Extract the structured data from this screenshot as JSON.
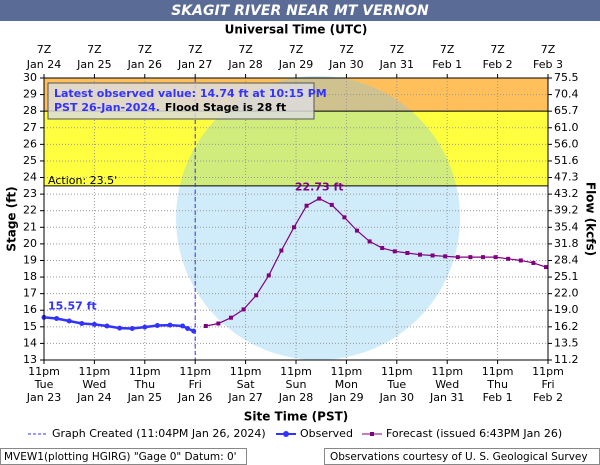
{
  "chart_data": {
    "type": "hydrograph",
    "title": "SKAGIT RIVER NEAR MT VERNON",
    "top_axis_label": "Universal Time (UTC)",
    "top_tick_times": [
      "7Z",
      "7Z",
      "7Z",
      "7Z",
      "7Z",
      "7Z",
      "7Z",
      "7Z",
      "7Z",
      "7Z",
      "7Z"
    ],
    "top_tick_dates": [
      "Jan 24",
      "Jan 25",
      "Jan 26",
      "Jan 27",
      "Jan 28",
      "Jan 29",
      "Jan 30",
      "Jan 31",
      "Feb  1",
      "Feb  2",
      "Feb  3"
    ],
    "xlabel": "Site Time (PST)",
    "x_tick_times": [
      "11pm",
      "11pm",
      "11pm",
      "11pm",
      "11pm",
      "11pm",
      "11pm",
      "11pm",
      "11pm",
      "11pm",
      "11pm"
    ],
    "x_tick_weekdays": [
      "Tue",
      "Wed",
      "Thu",
      "Fri",
      "Sat",
      "Sun",
      "Mon",
      "Tue",
      "Wed",
      "Thu",
      "Fri"
    ],
    "xticks": [
      {
        "value": 0,
        "label": "Jan 23"
      },
      {
        "value": 1,
        "label": "Jan 24"
      },
      {
        "value": 2,
        "label": "Jan 25"
      },
      {
        "value": 3,
        "label": "Jan 26"
      },
      {
        "value": 4,
        "label": "Jan 27"
      },
      {
        "value": 5,
        "label": "Jan 28"
      },
      {
        "value": 6,
        "label": "Jan 29"
      },
      {
        "value": 7,
        "label": "Jan 30"
      },
      {
        "value": 8,
        "label": "Jan 31"
      },
      {
        "value": 9,
        "label": "Feb 1"
      },
      {
        "value": 10,
        "label": "Feb 2"
      }
    ],
    "xlim": [
      0,
      10
    ],
    "ylabel": "Stage (ft)",
    "ylim": [
      13,
      30
    ],
    "yticks": [
      13,
      14,
      15,
      16,
      17,
      18,
      19,
      20,
      21,
      22,
      23,
      24,
      25,
      26,
      27,
      28,
      29,
      30
    ],
    "y2label": "Flow (kcfs)",
    "y2ticks": [
      11.2,
      13.5,
      16.2,
      {
        "value": 19,
        "label": "19.0"
      },
      {
        "value": 22,
        "label": "22.0"
      },
      25.1,
      28.4,
      31.8,
      35.4,
      39.2,
      43.2,
      47.3,
      51.6,
      {
        "value": 56,
        "label": "56.0"
      },
      {
        "value": 61,
        "label": "61.0"
      },
      65.7,
      70.4,
      75.5
    ],
    "grid": true,
    "thresholds": {
      "action": {
        "label": "Action:  23.5'",
        "value": 23.5,
        "color": "#ffff40"
      },
      "flood": {
        "value": 28,
        "color": "#ffbf5a"
      }
    },
    "info_line1": "Latest observed value: 14.74 ft at 10:15 PM",
    "info_line2": "PST 26-Jan-2024.",
    "info_flood": "Flood Stage is 28 ft",
    "graph_created": {
      "name": "Graph Created (11:04PM Jan 26, 2024)",
      "x": 3.0
    },
    "series": [
      {
        "name": "Observed",
        "color": "#3333ff",
        "x": [
          0,
          0.25,
          0.5,
          0.75,
          1,
          1.25,
          1.5,
          1.75,
          2,
          2.25,
          2.5,
          2.75,
          2.85,
          2.97
        ],
        "values": [
          15.57,
          15.5,
          15.35,
          15.2,
          15.15,
          15.05,
          14.92,
          14.9,
          14.98,
          15.08,
          15.1,
          15.05,
          14.9,
          14.74
        ],
        "value_labels": [
          "15.57 ft",
          null,
          null,
          null,
          null,
          null,
          null,
          null,
          null,
          null,
          null,
          null,
          null,
          null
        ]
      },
      {
        "name": "Forecast (issued 6:43PM Jan 26)",
        "color": "#800080",
        "x": [
          3.21,
          3.46,
          3.71,
          3.96,
          4.21,
          4.46,
          4.71,
          4.96,
          5.21,
          5.46,
          5.71,
          5.96,
          6.21,
          6.46,
          6.71,
          6.96,
          7.21,
          7.46,
          7.71,
          7.96,
          8.21,
          8.46,
          8.71,
          8.96,
          9.21,
          9.46,
          9.71,
          9.96
        ],
        "values": [
          15.05,
          15.2,
          15.55,
          16.05,
          16.9,
          18.1,
          19.6,
          21.0,
          22.3,
          22.73,
          22.35,
          21.6,
          20.8,
          20.15,
          19.75,
          19.55,
          19.45,
          19.35,
          19.3,
          19.25,
          19.2,
          19.2,
          19.2,
          19.2,
          19.1,
          19.0,
          18.85,
          18.6
        ],
        "value_labels": [
          null,
          null,
          null,
          null,
          null,
          null,
          null,
          null,
          null,
          "22.73 ft",
          null,
          null,
          null,
          null,
          null,
          null,
          null,
          null,
          null,
          null,
          null,
          null,
          null,
          null,
          null,
          null,
          null,
          null
        ]
      }
    ],
    "footer_left": "MVEW1(plotting HGIRG) \"Gage 0\" Datum: 0'",
    "footer_right": "Observations courtesy of U. S. Geological Survey"
  }
}
